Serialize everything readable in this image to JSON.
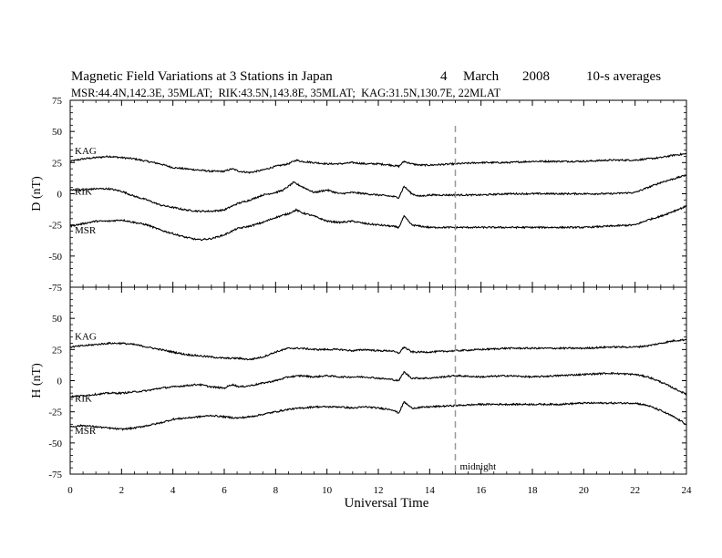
{
  "title": {
    "main": "Magnetic Field Variations at 3 Stations in Japan",
    "date_day": "4",
    "date_month": "March",
    "date_year": "2008",
    "averaging": "10-s averages",
    "stations": "MSR:44.4N,142.3E, 35MLAT;  RIK:43.5N,143.8E, 35MLAT;  KAG:31.5N,130.7E, 22MLAT"
  },
  "colors": {
    "line": "#000000",
    "midnight": "#999999",
    "background": "#ffffff"
  },
  "chart_data": {
    "type": "line",
    "xlabel": "Universal Time",
    "xlim": [
      0,
      24
    ],
    "x_ticks": [
      0,
      2,
      4,
      6,
      8,
      10,
      12,
      14,
      16,
      18,
      20,
      22,
      24
    ],
    "annotation": {
      "x": 15,
      "label": "midnight"
    },
    "panels": [
      {
        "ylabel": "D (nT)",
        "ylim": [
          -75,
          75
        ],
        "y_ticks": [
          75,
          50,
          25,
          0,
          -25,
          -50,
          -75
        ],
        "series": [
          {
            "name": "KAG",
            "x": [
              0,
              0.5,
              1,
              1.5,
              2,
              2.5,
              3,
              3.5,
              4,
              4.5,
              5,
              5.5,
              6,
              6.3,
              6.6,
              7,
              7.5,
              8,
              8.5,
              8.8,
              9,
              9.5,
              10,
              10.5,
              11,
              11.5,
              12,
              12.5,
              12.8,
              13,
              13.3,
              13.6,
              14,
              15,
              16,
              17,
              18,
              19,
              20,
              21,
              22,
              22.5,
              23,
              23.5,
              24
            ],
            "values": [
              26,
              28,
              29,
              30,
              29,
              28,
              26,
              24,
              21,
              20,
              19,
              18,
              18,
              20,
              18,
              17,
              19,
              22,
              24,
              27,
              26,
              25,
              24,
              24,
              25,
              24,
              24,
              23,
              22,
              26,
              24,
              23,
              23,
              24,
              25,
              25,
              26,
              26,
              26,
              27,
              27,
              28,
              29,
              31,
              32
            ]
          },
          {
            "name": "RIK",
            "x": [
              0,
              0.5,
              1,
              1.5,
              2,
              2.5,
              3,
              3.5,
              4,
              4.5,
              5,
              5.5,
              6,
              6.5,
              7,
              7.5,
              8,
              8.3,
              8.7,
              9,
              9.5,
              10,
              10.5,
              11,
              11.5,
              12,
              12.5,
              12.8,
              13,
              13.3,
              13.6,
              14,
              15,
              16,
              17,
              18,
              19,
              20,
              21,
              22,
              22.5,
              23,
              23.5,
              24
            ],
            "values": [
              3,
              3,
              4,
              4,
              2,
              -2,
              -5,
              -9,
              -11,
              -13,
              -14,
              -14,
              -13,
              -8,
              -5,
              -1,
              1,
              3,
              9,
              6,
              1,
              3,
              0,
              1,
              0,
              -1,
              -2,
              -3,
              6,
              0,
              -2,
              -1,
              -1,
              -1,
              0,
              0,
              0,
              0,
              0,
              1,
              5,
              9,
              12,
              15
            ]
          },
          {
            "name": "MSR",
            "x": [
              0,
              0.5,
              1,
              1.5,
              2,
              2.5,
              3,
              3.5,
              4,
              4.5,
              5,
              5.5,
              6,
              6.5,
              7,
              7.5,
              8,
              8.5,
              8.8,
              9,
              9.5,
              10,
              10.5,
              11,
              11.5,
              12,
              12.5,
              12.8,
              13,
              13.3,
              13.6,
              14,
              15,
              16,
              17,
              18,
              19,
              20,
              21,
              22,
              22.5,
              23,
              23.5,
              24
            ],
            "values": [
              -26,
              -24,
              -22,
              -22,
              -21,
              -23,
              -25,
              -29,
              -32,
              -35,
              -37,
              -36,
              -33,
              -28,
              -26,
              -23,
              -19,
              -16,
              -13,
              -15,
              -18,
              -22,
              -23,
              -22,
              -24,
              -25,
              -26,
              -27,
              -18,
              -25,
              -26,
              -27,
              -27,
              -27,
              -27,
              -27,
              -27,
              -27,
              -26,
              -25,
              -21,
              -18,
              -14,
              -10
            ]
          }
        ]
      },
      {
        "ylabel": "H (nT)",
        "ylim": [
          -75,
          75
        ],
        "y_ticks": [
          75,
          50,
          25,
          0,
          -25,
          -50,
          -75
        ],
        "series": [
          {
            "name": "KAG",
            "x": [
              0,
              0.5,
              1,
              1.5,
              2,
              2.5,
              3,
              3.5,
              4,
              4.5,
              5,
              5.5,
              6,
              6.5,
              7,
              7.5,
              8,
              8.5,
              9,
              9.5,
              10,
              10.5,
              11,
              11.5,
              12,
              12.5,
              12.8,
              13,
              13.3,
              14,
              15,
              16,
              17,
              18,
              19,
              20,
              21,
              22,
              22.5,
              23,
              23.5,
              24
            ],
            "values": [
              27,
              28,
              29,
              30,
              30,
              29,
              27,
              25,
              23,
              21,
              20,
              19,
              18,
              18,
              17,
              19,
              23,
              26,
              26,
              25,
              25,
              25,
              24,
              25,
              24,
              24,
              22,
              27,
              23,
              23,
              24,
              25,
              26,
              26,
              26,
              26,
              27,
              27,
              28,
              30,
              32,
              33
            ]
          },
          {
            "name": "RIK",
            "x": [
              0,
              0.5,
              1,
              1.5,
              2,
              2.5,
              3,
              3.5,
              4,
              4.5,
              5,
              5.5,
              6,
              6.3,
              6.6,
              7,
              7.5,
              8,
              8.5,
              9,
              9.5,
              10,
              10.5,
              11,
              11.5,
              12,
              12.5,
              12.8,
              13,
              13.3,
              14,
              15,
              16,
              17,
              18,
              19,
              20,
              21,
              22,
              22.5,
              23,
              23.5,
              24
            ],
            "values": [
              -13,
              -12,
              -11,
              -10,
              -10,
              -9,
              -8,
              -6,
              -5,
              -4,
              -3,
              -5,
              -6,
              -3,
              -5,
              -4,
              -2,
              0,
              3,
              4,
              3,
              4,
              3,
              3,
              3,
              2,
              1,
              0,
              7,
              2,
              2,
              4,
              3,
              4,
              3,
              4,
              5,
              6,
              5,
              3,
              -1,
              -6,
              -11
            ]
          },
          {
            "name": "MSR",
            "x": [
              0,
              0.5,
              1,
              1.5,
              2,
              2.5,
              3,
              3.5,
              4,
              4.5,
              5,
              5.5,
              6,
              6.5,
              7,
              7.5,
              8,
              8.5,
              9,
              9.5,
              10,
              10.5,
              11,
              11.5,
              12,
              12.5,
              12.8,
              13,
              13.3,
              14,
              15,
              16,
              17,
              18,
              19,
              20,
              21,
              22,
              22.5,
              23,
              23.5,
              24
            ],
            "values": [
              -37,
              -36,
              -37,
              -38,
              -39,
              -38,
              -36,
              -34,
              -31,
              -30,
              -29,
              -28,
              -29,
              -30,
              -29,
              -27,
              -25,
              -23,
              -22,
              -21,
              -21,
              -21,
              -22,
              -21,
              -22,
              -23,
              -26,
              -17,
              -22,
              -21,
              -20,
              -19,
              -19,
              -19,
              -19,
              -18,
              -18,
              -18,
              -20,
              -24,
              -29,
              -35
            ]
          }
        ]
      }
    ]
  }
}
